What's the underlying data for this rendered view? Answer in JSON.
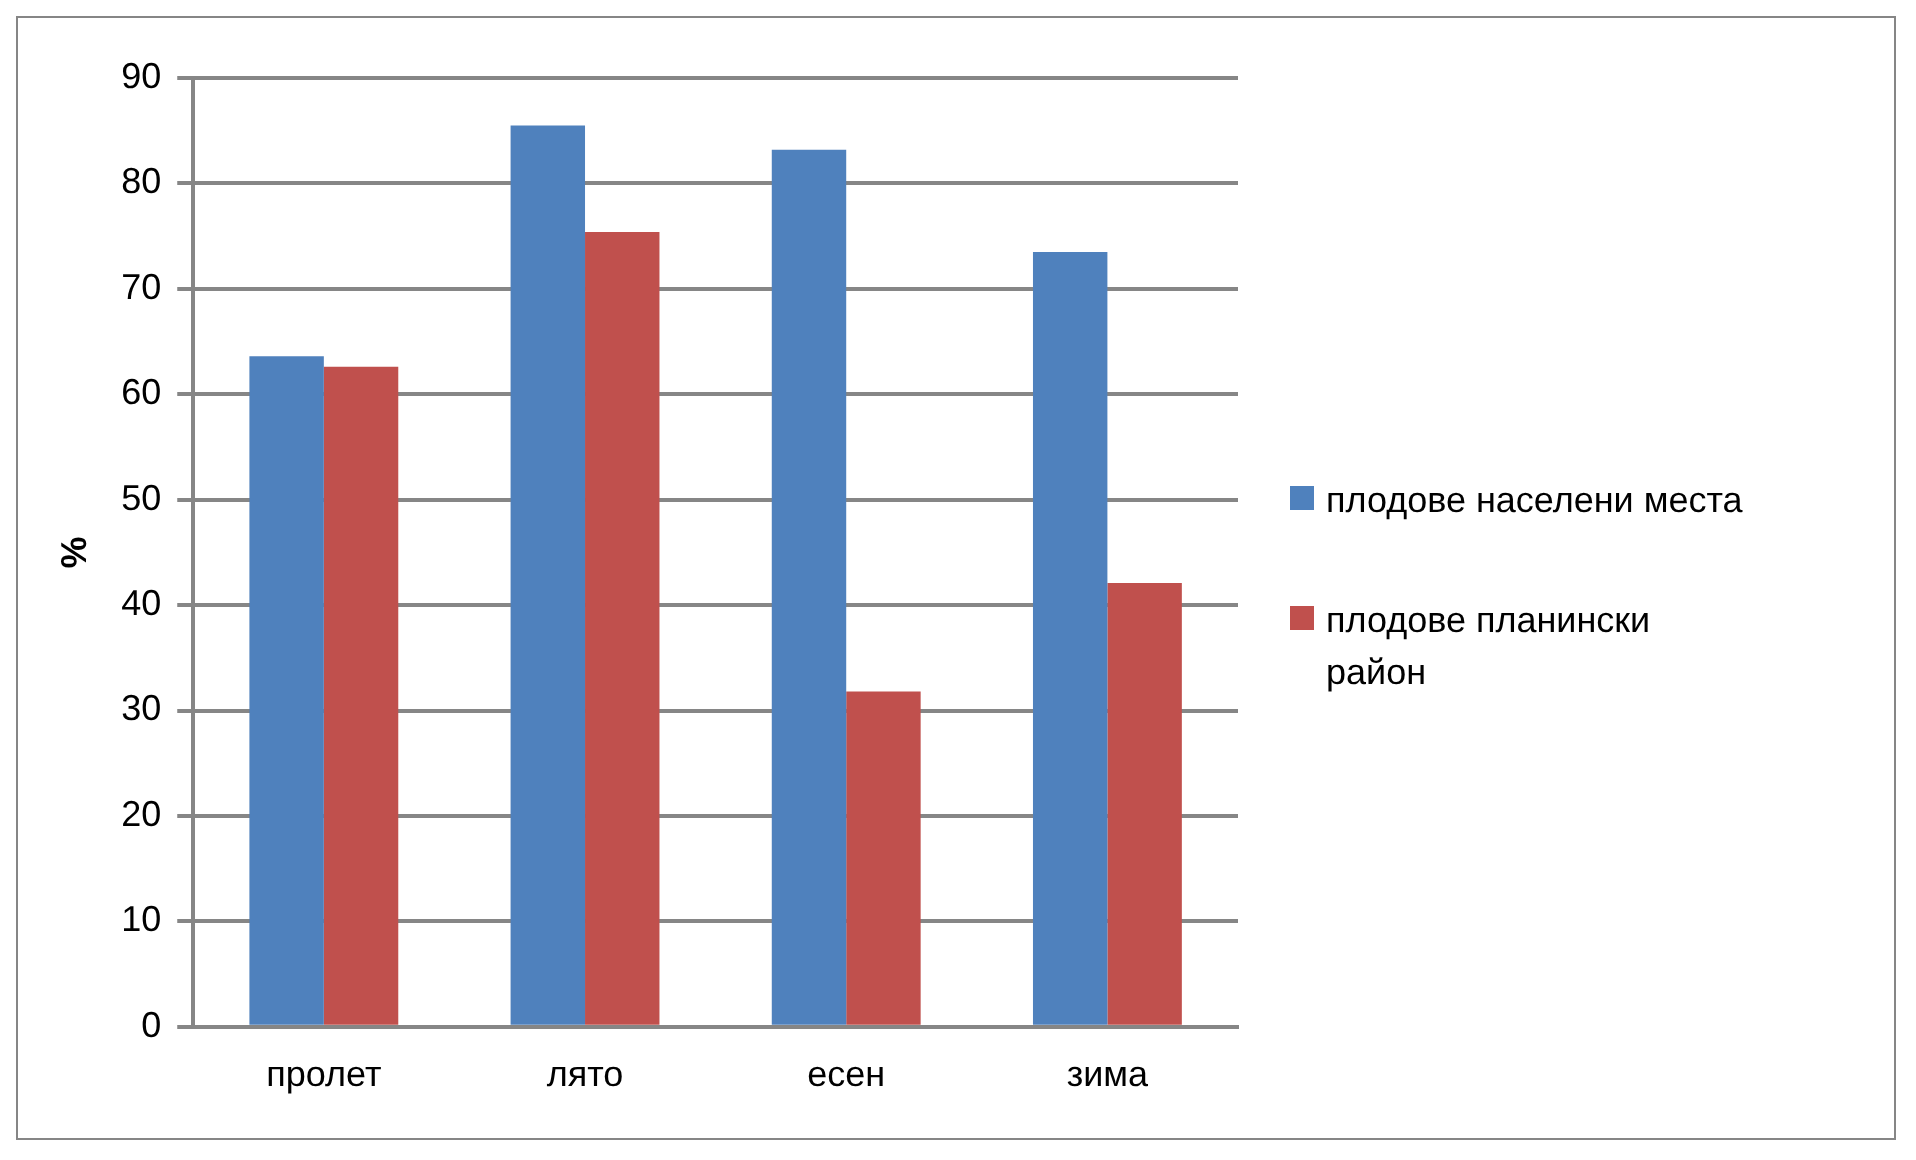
{
  "chart_data": {
    "type": "bar",
    "ylabel": "%",
    "categories": [
      "пролет",
      "лято",
      "есен",
      "зима"
    ],
    "series": [
      {
        "name": "плодове населени места",
        "color": "#4f81bd",
        "values": [
          63.6,
          85.5,
          83.2,
          73.5
        ]
      },
      {
        "name": "плодове планински район",
        "color": "#c0504d",
        "values": [
          62.6,
          75.4,
          31.8,
          42.1
        ]
      }
    ],
    "ylim": [
      0,
      90
    ],
    "yticks": [
      0,
      10,
      20,
      30,
      40,
      50,
      60,
      70,
      80,
      90
    ],
    "grid": "y",
    "legend": "right"
  }
}
